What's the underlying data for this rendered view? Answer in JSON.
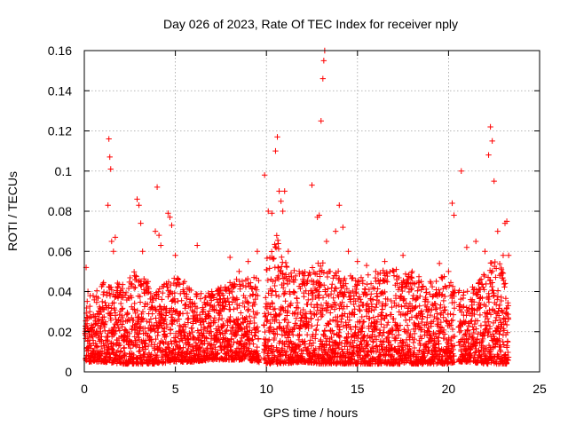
{
  "chart_data": {
    "type": "scatter",
    "title": "Day 026 of 2023, Rate Of TEC Index for receiver nply",
    "xlabel": "GPS time / hours",
    "ylabel": "ROTI / TECUs",
    "xlim": [
      0,
      25
    ],
    "ylim": [
      0,
      0.16
    ],
    "x_ticks": [
      "0",
      "5",
      "10",
      "15",
      "20",
      "25"
    ],
    "y_ticks": [
      "0",
      "0.02",
      "0.04",
      "0.06",
      "0.08",
      "0.1",
      "0.12",
      "0.14",
      "0.16"
    ],
    "grid": true,
    "marker": "+",
    "color": "#ff0000",
    "series": [
      {
        "x": [
          0.1,
          0.2,
          0.3,
          0.4,
          1.3,
          1.35,
          1.4,
          1.45,
          1.5,
          1.6,
          1.7,
          2.9,
          3.0,
          3.1,
          3.2,
          3.5,
          3.9,
          4.0,
          4.1,
          4.2,
          4.6,
          4.7,
          4.8,
          5.0,
          5.5,
          6.2,
          7.0,
          7.5,
          8.0,
          8.5,
          9.0,
          9.5,
          9.9,
          10.1,
          10.3,
          10.5,
          10.6,
          10.7,
          10.8,
          10.9,
          11.0,
          11.2,
          11.5,
          11.8,
          12.0,
          12.2,
          12.5,
          12.8,
          12.9,
          13.0,
          13.1,
          13.15,
          13.2,
          13.3,
          13.5,
          13.8,
          14.0,
          14.2,
          14.5,
          15.0,
          15.5,
          16.0,
          16.5,
          17.0,
          17.5,
          18.0,
          18.5,
          19.0,
          19.5,
          20.0,
          20.2,
          20.3,
          20.7,
          21.0,
          21.5,
          22.0,
          22.2,
          22.3,
          22.4,
          22.5,
          22.7,
          23.0,
          23.1,
          23.2,
          23.3
        ],
        "y": [
          0.052,
          0.04,
          0.03,
          0.02,
          0.083,
          0.116,
          0.107,
          0.101,
          0.065,
          0.06,
          0.067,
          0.086,
          0.083,
          0.074,
          0.06,
          0.045,
          0.07,
          0.092,
          0.068,
          0.063,
          0.079,
          0.077,
          0.073,
          0.058,
          0.045,
          0.063,
          0.04,
          0.042,
          0.057,
          0.05,
          0.055,
          0.06,
          0.098,
          0.08,
          0.079,
          0.11,
          0.117,
          0.09,
          0.085,
          0.08,
          0.09,
          0.06,
          0.04,
          0.05,
          0.046,
          0.044,
          0.093,
          0.077,
          0.078,
          0.125,
          0.146,
          0.155,
          0.16,
          0.065,
          0.05,
          0.07,
          0.083,
          0.072,
          0.06,
          0.055,
          0.053,
          0.05,
          0.055,
          0.05,
          0.058,
          0.05,
          0.045,
          0.045,
          0.054,
          0.05,
          0.084,
          0.078,
          0.1,
          0.062,
          0.065,
          0.06,
          0.108,
          0.122,
          0.115,
          0.095,
          0.07,
          0.058,
          0.074,
          0.075,
          0.058
        ]
      }
    ],
    "band": {
      "description_points": [
        [
          0.0,
          0.005,
          0.035
        ],
        [
          1.0,
          0.005,
          0.045
        ],
        [
          2.0,
          0.004,
          0.045
        ],
        [
          3.0,
          0.004,
          0.052
        ],
        [
          4.0,
          0.004,
          0.04
        ],
        [
          5.0,
          0.005,
          0.05
        ],
        [
          6.0,
          0.005,
          0.04
        ],
        [
          7.0,
          0.006,
          0.04
        ],
        [
          8.0,
          0.006,
          0.045
        ],
        [
          9.0,
          0.006,
          0.048
        ],
        [
          9.8,
          0.004,
          0.05
        ],
        [
          10.5,
          0.004,
          0.07
        ],
        [
          11.0,
          0.004,
          0.055
        ],
        [
          12.0,
          0.005,
          0.05
        ],
        [
          13.0,
          0.004,
          0.055
        ],
        [
          14.0,
          0.004,
          0.05
        ],
        [
          15.0,
          0.004,
          0.048
        ],
        [
          16.0,
          0.004,
          0.05
        ],
        [
          17.0,
          0.004,
          0.052
        ],
        [
          18.0,
          0.004,
          0.05
        ],
        [
          19.0,
          0.004,
          0.045
        ],
        [
          20.0,
          0.004,
          0.05
        ],
        [
          20.4,
          0.005,
          0.045
        ],
        [
          21.0,
          0.005,
          0.04
        ],
        [
          22.0,
          0.004,
          0.05
        ],
        [
          22.5,
          0.004,
          0.06
        ],
        [
          23.0,
          0.004,
          0.05
        ],
        [
          23.3,
          0.004,
          0.045
        ]
      ]
    }
  }
}
